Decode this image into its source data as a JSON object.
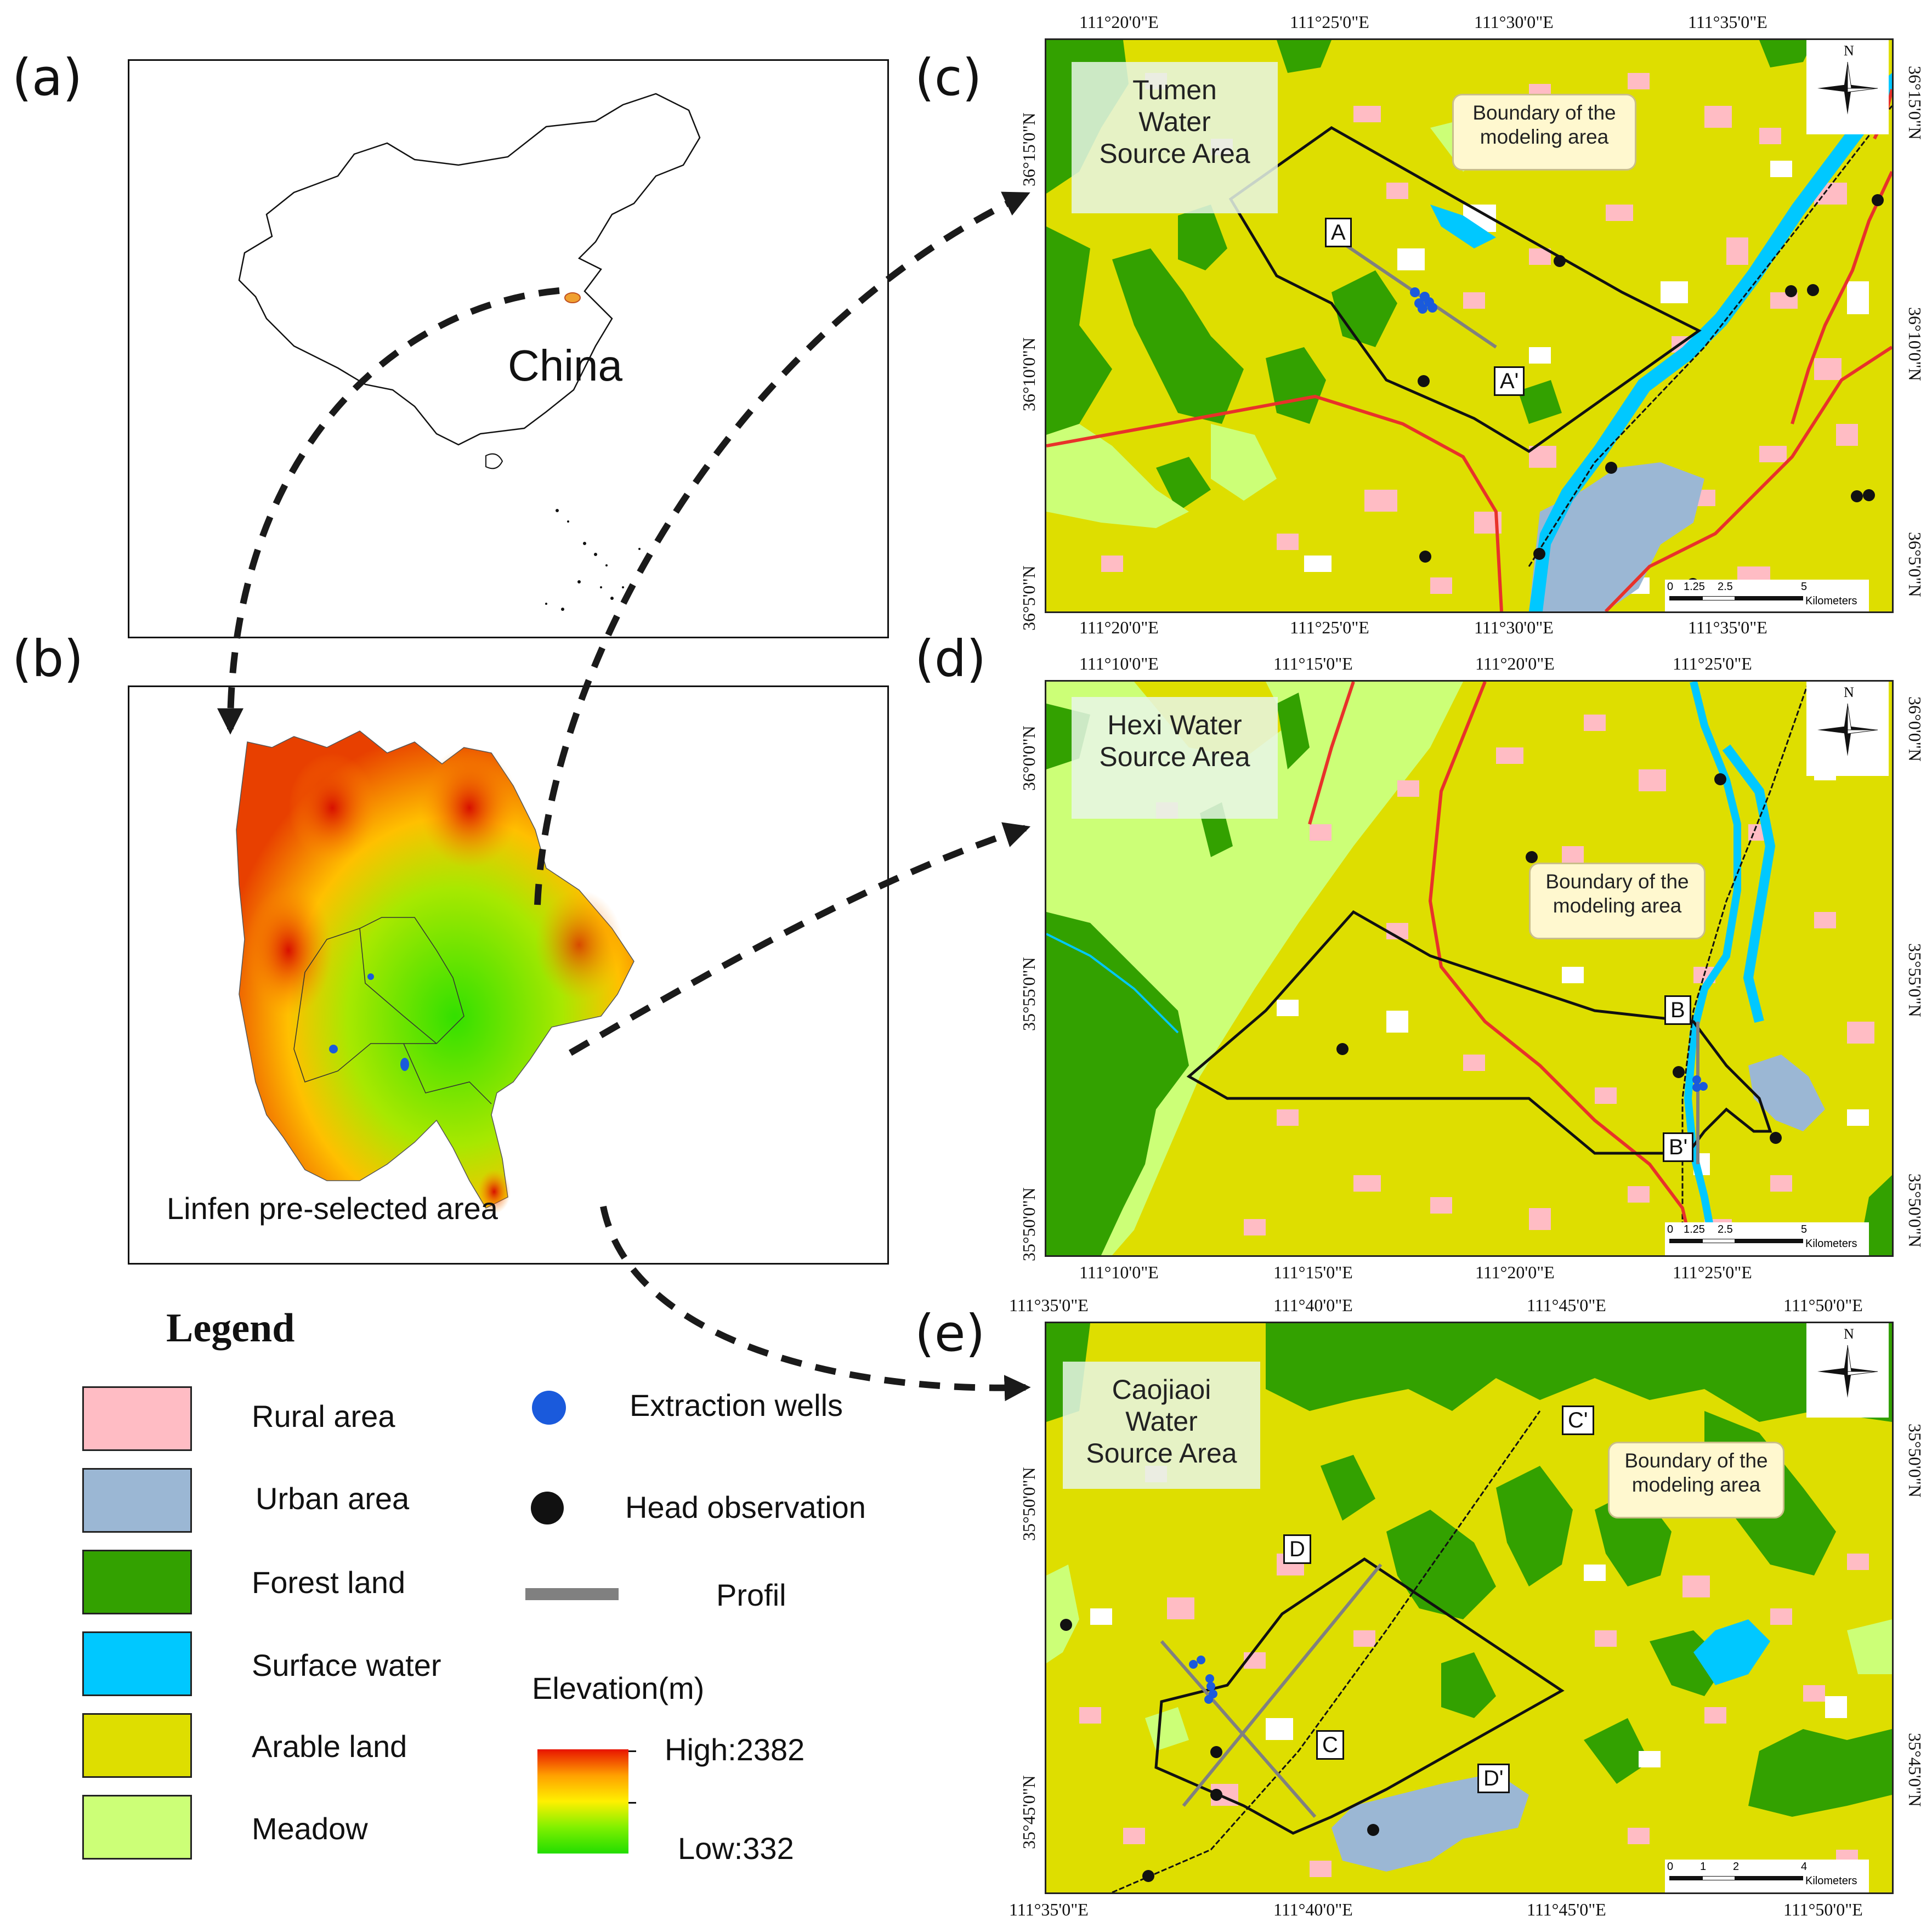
{
  "panels": {
    "a": {
      "label": "(a)",
      "country": "China"
    },
    "b": {
      "label": "(b)",
      "caption": "Linfen pre-selected area"
    },
    "c": {
      "label": "(c)",
      "area_title": "Tumen\nWater\nSource Area",
      "callout": "Boundary of the\nmodeling area",
      "profile_start": "A",
      "profile_end": "A'",
      "top_ticks": [
        "111°20'0\"E",
        "111°25'0\"E",
        "111°30'0\"E",
        "111°35'0\"E"
      ],
      "bottom_ticks": [
        "111°20'0\"E",
        "111°25'0\"E",
        "111°30'0\"E",
        "111°35'0\"E"
      ],
      "left_ticks": [
        "36°15'0\"N",
        "36°10'0\"N",
        "36°5'0\"N"
      ],
      "right_ticks": [
        "36°15'0\"N",
        "36°10'0\"N",
        "36°5'0\"N"
      ],
      "scale": {
        "ticks": [
          "0",
          "1.25",
          "2.5",
          "5"
        ],
        "unit": "Kilometers"
      }
    },
    "d": {
      "label": "(d)",
      "area_title": "Hexi Water\nSource Area",
      "callout": "Boundary of the\nmodeling area",
      "profile_start": "B",
      "profile_end": "B'",
      "top_ticks": [
        "111°10'0\"E",
        "111°15'0\"E",
        "111°20'0\"E",
        "111°25'0\"E"
      ],
      "bottom_ticks": [
        "111°10'0\"E",
        "111°15'0\"E",
        "111°20'0\"E",
        "111°25'0\"E"
      ],
      "left_ticks": [
        "36°0'0\"N",
        "35°55'0\"N",
        "35°50'0\"N"
      ],
      "right_ticks": [
        "36°0'0\"N",
        "35°55'0\"N",
        "35°50'0\"N"
      ],
      "scale": {
        "ticks": [
          "0",
          "1.25",
          "2.5",
          "5"
        ],
        "unit": "Kilometers"
      }
    },
    "e": {
      "label": "(e)",
      "area_title": "Caojiaoi\nWater\nSource Area",
      "callout": "Boundary of the\nmodeling area",
      "profile_c_start": "C",
      "profile_c_end": "C'",
      "profile_d_start": "D",
      "profile_d_end": "D'",
      "top_ticks": [
        "111°35'0\"E",
        "111°40'0\"E",
        "111°45'0\"E",
        "111°50'0\"E"
      ],
      "bottom_ticks": [
        "111°35'0\"E",
        "111°40'0\"E",
        "111°45'0\"E",
        "111°50'0\"E"
      ],
      "left_ticks": [
        "35°50'0\"N",
        "35°45'0\"N"
      ],
      "right_ticks": [
        "35°50'0\"N",
        "35°45'0\"N"
      ],
      "scale": {
        "ticks": [
          "0",
          "1",
          "2",
          "4"
        ],
        "unit": "Kilometers"
      }
    }
  },
  "compass": {
    "north": "N"
  },
  "legend": {
    "title": "Legend",
    "landuse": [
      {
        "label": "Rural area",
        "color": "#ffbcc4"
      },
      {
        "label": "Urban area",
        "color": "#9bb7d4"
      },
      {
        "label": "Forest land",
        "color": "#33a100"
      },
      {
        "label": "Surface water",
        "color": "#00c8ff"
      },
      {
        "label": "Arable land",
        "color": "#dede00"
      },
      {
        "label": "Meadow",
        "color": "#ccff77"
      }
    ],
    "symbols": {
      "wells": "Extraction wells",
      "head": "Head observation",
      "profile": "Profil"
    },
    "elevation": {
      "title": "Elevation(m)",
      "high": "High:2382",
      "low": "Low:332"
    }
  },
  "colors": {
    "arable": "#dede00",
    "forest": "#33a100",
    "meadow": "#ccff77",
    "water": "#00c8ff",
    "urban": "#9bb7d4",
    "rural": "#ffbcc4",
    "road": "#e8322a",
    "well": "#1a5adc"
  }
}
